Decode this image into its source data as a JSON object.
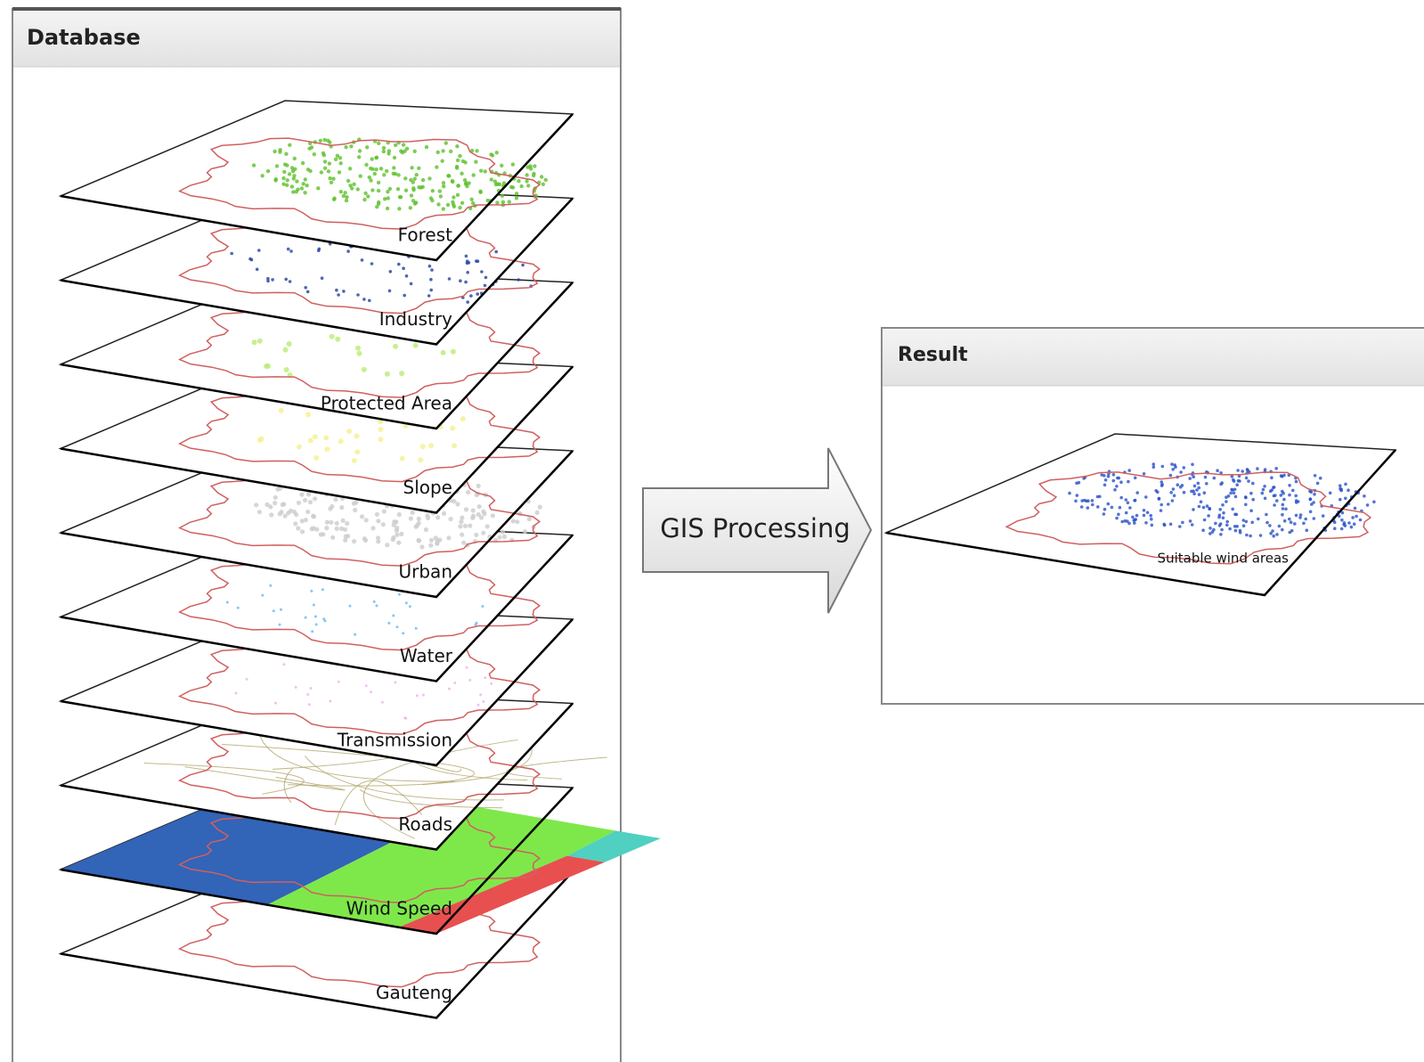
{
  "database": {
    "title": "Database",
    "layers": [
      "Forest",
      "Industry",
      "Protected Area",
      "Slope",
      "Urban",
      "Water",
      "Transmission",
      "Roads",
      "Wind Speed",
      "Gauteng"
    ]
  },
  "process": {
    "label": "GIS Processing"
  },
  "result": {
    "title": "Result",
    "layer": "Suitable wind areas"
  }
}
